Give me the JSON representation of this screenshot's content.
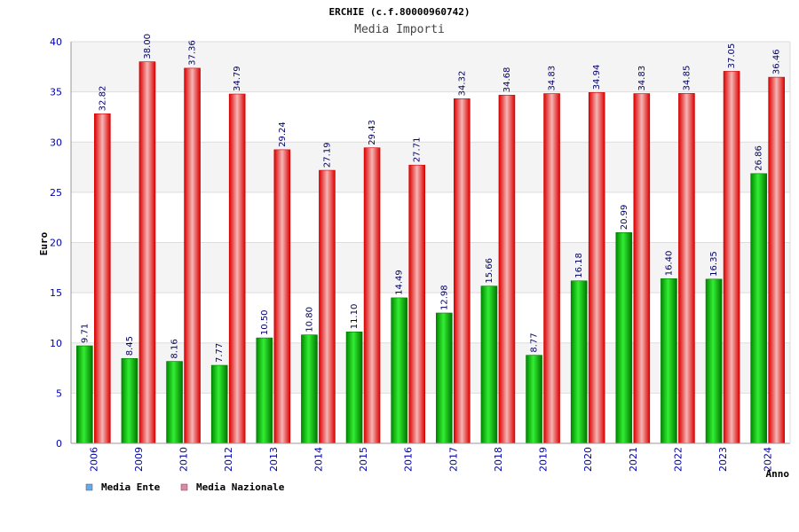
{
  "chart_data": {
    "type": "bar",
    "title": "ERCHIE (c.f.80000960742)",
    "subtitle": "Media Importi",
    "xlabel": "Anno",
    "ylabel": "Euro",
    "ylim": [
      0,
      40
    ],
    "yticks": [
      "0",
      "5",
      "10",
      "15",
      "20",
      "25",
      "30",
      "35",
      "40"
    ],
    "grid": true,
    "legend_position": "bottom-left",
    "categories": [
      "2006",
      "2009",
      "2010",
      "2012",
      "2013",
      "2014",
      "2015",
      "2016",
      "2017",
      "2018",
      "2019",
      "2020",
      "2021",
      "2022",
      "2023",
      "2024"
    ],
    "series": [
      {
        "name": "Media Ente",
        "color": "#00aa00",
        "legend_color": "#66aaee",
        "values": [
          9.71,
          8.45,
          8.16,
          7.77,
          10.5,
          10.8,
          11.1,
          14.49,
          12.98,
          15.66,
          8.77,
          16.18,
          20.99,
          16.4,
          16.35,
          26.86
        ],
        "labels": [
          "9.71",
          "8.45",
          "8.16",
          "7.77",
          "10.50",
          "10.80",
          "11.10",
          "14.49",
          "12.98",
          "15.66",
          "8.77",
          "16.18",
          "20.99",
          "16.40",
          "16.35",
          "26.86"
        ]
      },
      {
        "name": "Media Nazionale",
        "color": "#ee0000",
        "legend_color": "#dd88aa",
        "values": [
          32.82,
          38.0,
          37.36,
          34.79,
          29.24,
          27.19,
          29.43,
          27.71,
          34.32,
          34.68,
          34.83,
          34.94,
          34.83,
          34.85,
          37.05,
          36.46
        ],
        "labels": [
          "32.82",
          "38.00",
          "37.36",
          "34.79",
          "29.24",
          "27.19",
          "29.43",
          "27.71",
          "34.32",
          "34.68",
          "34.83",
          "34.94",
          "34.83",
          "34.85",
          "37.05",
          "36.46"
        ]
      }
    ]
  }
}
